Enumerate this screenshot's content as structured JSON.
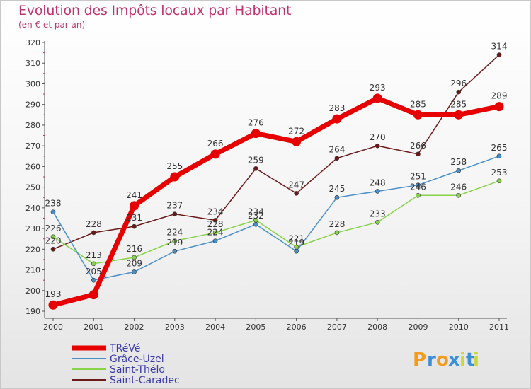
{
  "header": {
    "title": "Evolution des Impôts locaux par Habitant",
    "subtitle": "(en € et par an)"
  },
  "brand": {
    "letters": [
      "P",
      "r",
      "o",
      "x",
      "i",
      "t",
      "i"
    ],
    "colors": [
      "#f29b1c",
      "#3a8fd8",
      "#f29b1c",
      "#3a8fd8",
      "#c8d83a",
      "#3a8fd8",
      "#c8d83a"
    ]
  },
  "chart_data": {
    "type": "line",
    "title": "Evolution des Impôts locaux par Habitant",
    "subtitle": "(en € et par an)",
    "xlabel": "",
    "ylabel": "",
    "categories": [
      "2000",
      "2001",
      "2002",
      "2003",
      "2004",
      "2005",
      "2006",
      "2007",
      "2008",
      "2009",
      "2010",
      "2011"
    ],
    "ylim": [
      190,
      320
    ],
    "yticks": [
      190,
      200,
      210,
      220,
      230,
      240,
      250,
      260,
      270,
      280,
      290,
      300,
      310,
      320
    ],
    "grid": false,
    "legend_position": "bottom-left",
    "series": [
      {
        "name": "TRéVé",
        "color": "#e60000",
        "values": [
          193,
          198,
          241,
          255,
          266,
          276,
          272,
          283,
          293,
          285,
          285,
          289
        ]
      },
      {
        "name": "Grâce-Uzel",
        "color": "#4a8fc8",
        "values": [
          238,
          205,
          209,
          219,
          224,
          232,
          219,
          245,
          248,
          251,
          258,
          265
        ]
      },
      {
        "name": "Saint-Thélo",
        "color": "#88d34a",
        "values": [
          226,
          213,
          216,
          224,
          228,
          234,
          221,
          228,
          233,
          246,
          246,
          253
        ]
      },
      {
        "name": "Saint-Caradec",
        "color": "#6b1a1a",
        "values": [
          220,
          228,
          231,
          237,
          234,
          259,
          247,
          264,
          270,
          266,
          296,
          314
        ]
      }
    ],
    "data_labels": {
      "TRéVé": [
        "193",
        "",
        "241",
        "255",
        "266",
        "276",
        "272",
        "283",
        "293",
        "285",
        "285",
        "289"
      ],
      "Grâce-Uzel": [
        "238",
        "205",
        "209",
        "219",
        "224",
        "232",
        "219",
        "245",
        "248",
        "251",
        "258",
        "265"
      ],
      "Saint-Thélo": [
        "226",
        "213",
        "216",
        "224",
        "228",
        "234",
        "221",
        "228",
        "233",
        "246",
        "246",
        "253"
      ],
      "Saint-Caradec": [
        "220",
        "228",
        "231",
        "237",
        "234",
        "259",
        "247",
        "264",
        "270",
        "266",
        "296",
        "314"
      ]
    }
  }
}
